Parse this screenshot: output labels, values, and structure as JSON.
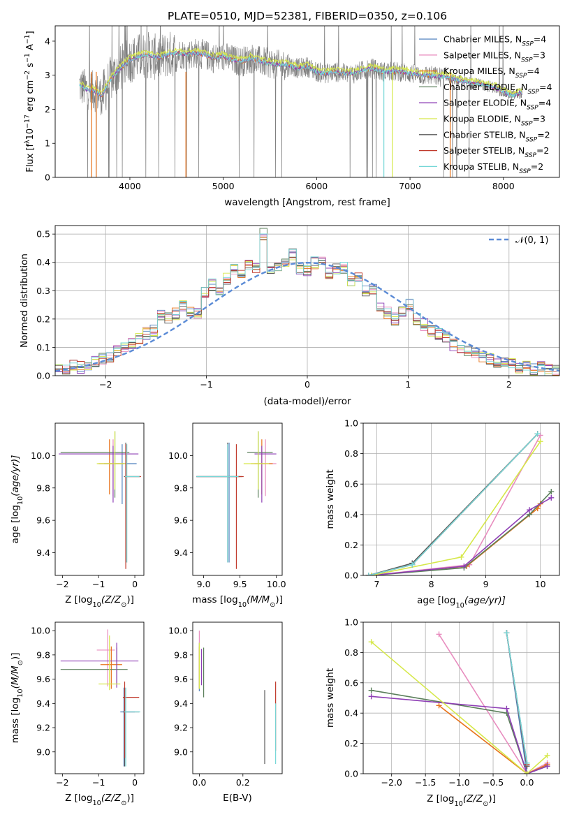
{
  "figure_title": "PLATE=0510, MJD=52381, FIBERID=0350, z=0.106",
  "colors": {
    "Chabrier MILES": "#4f81bd",
    "Salpeter MILES": "#e88dbf",
    "Kroupa MILES": "#e8731a",
    "Chabrier ELODIE": "#5b7f5b",
    "Salpeter ELODIE": "#8e3fb5",
    "Kroupa ELODIE": "#d6e84a",
    "Chabrier STELIB": "#5a5a5a",
    "Salpeter STELIB": "#c0392b",
    "Kroupa STELIB": "#76d7d7",
    "normal": "#5b8bd6"
  },
  "chart_data": [
    {
      "id": "spectrum",
      "type": "line",
      "title": "PLATE=0510, MJD=52381, FIBERID=0350, z=0.106",
      "xlabel": "wavelength [Angstrom, rest frame]",
      "ylabel_parts": [
        "Flux [f",
        "λ",
        "10",
        "−17",
        " erg cm",
        "−2",
        " s",
        "−1",
        " A",
        "−1",
        "]"
      ],
      "xlim": [
        3200,
        8600
      ],
      "ylim": [
        0,
        4.45
      ],
      "xticks": [
        4000,
        5000,
        6000,
        7000,
        8000
      ],
      "yticks": [
        0,
        1,
        2,
        3,
        4
      ],
      "legend_position": "right",
      "legend": [
        {
          "base": "Chabrier MILES, N",
          "sub": "SSP",
          "tail": "=4",
          "key": "Chabrier MILES"
        },
        {
          "base": "Salpeter MILES, N",
          "sub": "SSP",
          "tail": "=3",
          "key": "Salpeter MILES"
        },
        {
          "base": "Kroupa MILES, N",
          "sub": "SSP",
          "tail": "=4",
          "key": "Kroupa MILES"
        },
        {
          "base": "Chabrier ELODIE, N",
          "sub": "SSP",
          "tail": "=4",
          "key": "Chabrier ELODIE"
        },
        {
          "base": "Salpeter ELODIE, N",
          "sub": "SSP",
          "tail": "=4",
          "key": "Salpeter ELODIE"
        },
        {
          "base": "Kroupa ELODIE, N",
          "sub": "SSP",
          "tail": "=3",
          "key": "Kroupa ELODIE"
        },
        {
          "base": "Chabrier STELIB, N",
          "sub": "SSP",
          "tail": "=2",
          "key": "Chabrier STELIB"
        },
        {
          "base": "Salpeter STELIB, N",
          "sub": "SSP",
          "tail": "=2",
          "key": "Salpeter STELIB"
        },
        {
          "base": "Kroupa STELIB, N",
          "sub": "SSP",
          "tail": "=2",
          "key": "Kroupa STELIB"
        }
      ],
      "continuum": {
        "x": [
          3460,
          3520,
          3600,
          3700,
          3800,
          3900,
          4000,
          4100,
          4200,
          4300,
          4400,
          4500,
          4600,
          4700,
          4800,
          4900,
          5000,
          5100,
          5200,
          5300,
          5400,
          5500,
          5600,
          5700,
          5800,
          5900,
          6000,
          6100,
          6200,
          6300,
          6400,
          6500,
          6600,
          6700,
          6800,
          6900,
          7000,
          7100,
          7200,
          7300,
          7400,
          7500,
          7600,
          7700,
          7800,
          7900,
          8000,
          8100,
          8200
        ],
        "y": [
          2.7,
          2.6,
          2.55,
          2.4,
          2.9,
          3.2,
          3.45,
          3.55,
          3.6,
          3.5,
          3.6,
          3.65,
          3.6,
          3.65,
          3.6,
          3.5,
          3.55,
          3.45,
          3.4,
          3.5,
          3.4,
          3.35,
          3.3,
          3.3,
          3.2,
          3.25,
          3.1,
          3.05,
          3.1,
          3.05,
          3.05,
          3.15,
          3.2,
          3.1,
          3.1,
          3.1,
          3.05,
          3.0,
          3.0,
          2.95,
          2.95,
          2.85,
          2.8,
          2.75,
          2.7,
          2.65,
          2.5,
          2.4,
          2.5
        ]
      }
    },
    {
      "id": "residuals",
      "type": "histogram",
      "xlabel": "(data-model)/error",
      "ylabel": "Normed distribution",
      "xlim": [
        -2.5,
        2.5
      ],
      "ylim": [
        0,
        0.53
      ],
      "xticks": [
        -2,
        -1,
        0,
        1,
        2
      ],
      "yticks": [
        0,
        0.1,
        0.2,
        0.3,
        0.4,
        0.5
      ],
      "grid": true,
      "legend_label": "𝒩(0, 1)",
      "legend_position": "top-right",
      "bin_width": 0.1,
      "bin_start": -2.5,
      "base_heights": [
        0.03,
        0.02,
        0.04,
        0.03,
        0.04,
        0.05,
        0.06,
        0.07,
        0.09,
        0.1,
        0.11,
        0.13,
        0.15,
        0.16,
        0.21,
        0.2,
        0.22,
        0.25,
        0.23,
        0.22,
        0.29,
        0.32,
        0.3,
        0.34,
        0.38,
        0.36,
        0.39,
        0.38,
        0.5,
        0.37,
        0.38,
        0.4,
        0.43,
        0.38,
        0.37,
        0.4,
        0.41,
        0.36,
        0.38,
        0.38,
        0.33,
        0.35,
        0.3,
        0.31,
        0.25,
        0.22,
        0.2,
        0.23,
        0.25,
        0.2,
        0.18,
        0.16,
        0.15,
        0.14,
        0.11,
        0.1,
        0.09,
        0.08,
        0.07,
        0.06,
        0.05,
        0.04,
        0.04,
        0.03,
        0.03,
        0.02,
        0.03,
        0.02,
        0.02
      ]
    },
    {
      "id": "age_vs_Z",
      "type": "errorbar",
      "xlabel_parts": [
        "Z [log",
        "10",
        "(Z/Z",
        "⊙",
        ")]"
      ],
      "ylabel_parts": [
        "age  [log",
        "10",
        "(age/yr)]"
      ],
      "xlim": [
        -2.2,
        0.25
      ],
      "ylim": [
        9.26,
        10.2
      ],
      "xticks": [
        -2,
        -1,
        0
      ],
      "yticks": [
        9.4,
        9.6,
        9.8,
        10.0
      ],
      "points": [
        {
          "key": "Chabrier MILES",
          "x": -0.35,
          "y": 9.95,
          "xl": 0.5,
          "xh": 0.4,
          "yl": 0.25,
          "yh": 0.12
        },
        {
          "key": "Salpeter MILES",
          "x": -0.6,
          "y": 9.95,
          "xl": 0.4,
          "xh": 0.3,
          "yl": 0.2,
          "yh": 0.15
        },
        {
          "key": "Kroupa MILES",
          "x": -0.7,
          "y": 9.95,
          "xl": 0.3,
          "xh": 0.4,
          "yl": 0.19,
          "yh": 0.15
        },
        {
          "key": "Chabrier ELODIE",
          "x": -0.55,
          "y": 10.02,
          "xl": 1.5,
          "xh": 0.4,
          "yl": 0.28,
          "yh": 0.13
        },
        {
          "key": "Salpeter ELODIE",
          "x": -0.6,
          "y": 10.01,
          "xl": 1.5,
          "xh": 0.7,
          "yl": 0.3,
          "yh": 0.05
        },
        {
          "key": "Kroupa ELODIE",
          "x": -0.55,
          "y": 9.95,
          "xl": 0.5,
          "xh": 0.3,
          "yl": 0.16,
          "yh": 0.2
        },
        {
          "key": "Chabrier STELIB",
          "x": -0.25,
          "y": 9.87,
          "xl": 0.05,
          "xh": 0.4,
          "yl": 0.53,
          "yh": 0.21
        },
        {
          "key": "Salpeter STELIB",
          "x": -0.25,
          "y": 9.87,
          "xl": 0.03,
          "xh": 0.42,
          "yl": 0.57,
          "yh": 0.2
        },
        {
          "key": "Kroupa STELIB",
          "x": -0.22,
          "y": 9.87,
          "xl": 0.05,
          "xh": 0.35,
          "yl": 0.53,
          "yh": 0.2
        }
      ]
    },
    {
      "id": "age_vs_mass",
      "type": "errorbar",
      "xlabel_parts": [
        "mass [log",
        "10",
        "(M/M",
        "⊙",
        ")]"
      ],
      "ylabel_parts": [],
      "xlim": [
        8.85,
        10.08
      ],
      "ylim": [
        9.26,
        10.2
      ],
      "xticks": [
        9.0,
        9.5,
        10.0
      ],
      "yticks": [
        9.4,
        9.6,
        9.8,
        10.0
      ],
      "points": [
        {
          "key": "Chabrier MILES",
          "x": 9.35,
          "y": 9.87,
          "xl": 0.45,
          "xh": 0.15,
          "yl": 0.53,
          "yh": 0.21
        },
        {
          "key": "Salpeter MILES",
          "x": 9.85,
          "y": 9.95,
          "xl": 0.15,
          "xh": 0.15,
          "yl": 0.2,
          "yh": 0.15
        },
        {
          "key": "Kroupa MILES",
          "x": 9.8,
          "y": 9.95,
          "xl": 0.15,
          "xh": 0.15,
          "yl": 0.19,
          "yh": 0.15
        },
        {
          "key": "Chabrier ELODIE",
          "x": 9.75,
          "y": 10.02,
          "xl": 0.15,
          "xh": 0.2,
          "yl": 0.28,
          "yh": 0.13
        },
        {
          "key": "Salpeter ELODIE",
          "x": 9.8,
          "y": 10.01,
          "xl": 0.1,
          "xh": 0.2,
          "yl": 0.3,
          "yh": 0.05
        },
        {
          "key": "Kroupa ELODIE",
          "x": 9.75,
          "y": 9.95,
          "xl": 0.2,
          "xh": 0.15,
          "yl": 0.16,
          "yh": 0.2
        },
        {
          "key": "Chabrier STELIB",
          "x": 9.33,
          "y": 9.87,
          "xl": 0.43,
          "xh": 0.2,
          "yl": 0.53,
          "yh": 0.21
        },
        {
          "key": "Salpeter STELIB",
          "x": 9.45,
          "y": 9.87,
          "xl": 0.55,
          "xh": 0.1,
          "yl": 0.57,
          "yh": 0.2
        },
        {
          "key": "Kroupa STELIB",
          "x": 9.33,
          "y": 9.87,
          "xl": 0.43,
          "xh": 0.15,
          "yl": 0.53,
          "yh": 0.2
        }
      ]
    },
    {
      "id": "weight_vs_age",
      "type": "line",
      "xlabel_parts": [
        "age  [log",
        "10",
        "(age/yr)]"
      ],
      "ylabel": "mass weight",
      "xlim": [
        6.75,
        10.35
      ],
      "ylim": [
        0,
        1.0
      ],
      "xticks": [
        7,
        8,
        9,
        10
      ],
      "yticks": [
        0.0,
        0.2,
        0.4,
        0.6,
        0.8,
        1.0
      ],
      "grid": true,
      "series": [
        {
          "key": "Chabrier MILES",
          "x": [
            6.85,
            7.65,
            9.95
          ],
          "y": [
            0.0,
            0.07,
            0.93
          ]
        },
        {
          "key": "Salpeter MILES",
          "x": [
            6.9,
            8.7,
            10.0
          ],
          "y": [
            0.0,
            0.07,
            0.92
          ]
        },
        {
          "key": "Kroupa MILES",
          "x": [
            6.9,
            8.65,
            9.95,
            10.0
          ],
          "y": [
            0.0,
            0.06,
            0.44,
            0.47
          ]
        },
        {
          "key": "Chabrier ELODIE",
          "x": [
            6.9,
            8.6,
            9.8,
            10.2
          ],
          "y": [
            0.0,
            0.05,
            0.4,
            0.55
          ]
        },
        {
          "key": "Salpeter ELODIE",
          "x": [
            6.9,
            8.6,
            9.8,
            10.2
          ],
          "y": [
            0.0,
            0.06,
            0.43,
            0.51
          ]
        },
        {
          "key": "Kroupa ELODIE",
          "x": [
            6.9,
            8.55,
            10.0
          ],
          "y": [
            0.0,
            0.12,
            0.88
          ]
        },
        {
          "key": "Chabrier STELIB",
          "x": [
            6.85,
            7.65,
            9.95
          ],
          "y": [
            0.0,
            0.08,
            0.93
          ]
        },
        {
          "key": "Salpeter STELIB",
          "x": [
            6.85,
            7.65,
            9.95
          ],
          "y": [
            0.0,
            0.07,
            0.93
          ]
        },
        {
          "key": "Kroupa STELIB",
          "x": [
            6.85,
            7.65,
            9.95
          ],
          "y": [
            0.0,
            0.07,
            0.93
          ]
        }
      ]
    },
    {
      "id": "mass_vs_Z",
      "type": "errorbar",
      "xlabel_parts": [
        "Z [log",
        "10",
        "(Z/Z",
        "⊙",
        ")]"
      ],
      "ylabel_parts": [
        "mass [log",
        "10",
        "(M/M",
        "⊙",
        ")]"
      ],
      "xlim": [
        -2.2,
        0.25
      ],
      "ylim": [
        8.82,
        10.07
      ],
      "xticks": [
        -2,
        -1,
        0
      ],
      "yticks": [
        9.0,
        9.2,
        9.4,
        9.6,
        9.8,
        10.0
      ],
      "points": [
        {
          "key": "Chabrier MILES",
          "x": -0.3,
          "y": 9.33,
          "xl": 0.1,
          "xh": 0.3,
          "yl": 0.45,
          "yh": 0.2
        },
        {
          "key": "Salpeter MILES",
          "x": -0.75,
          "y": 9.84,
          "xl": 0.3,
          "xh": 0.2,
          "yl": 0.3,
          "yh": 0.17
        },
        {
          "key": "Kroupa MILES",
          "x": -0.65,
          "y": 9.72,
          "xl": 0.3,
          "xh": 0.3,
          "yl": 0.2,
          "yh": 0.15
        },
        {
          "key": "Chabrier ELODIE",
          "x": -0.5,
          "y": 9.68,
          "xl": 1.55,
          "xh": 0.3,
          "yl": 0.12,
          "yh": 0.18
        },
        {
          "key": "Salpeter ELODIE",
          "x": -0.5,
          "y": 9.75,
          "xl": 1.55,
          "xh": 0.6,
          "yl": 0.22,
          "yh": 0.15
        },
        {
          "key": "Kroupa ELODIE",
          "x": -0.7,
          "y": 9.56,
          "xl": 0.3,
          "xh": 0.3,
          "yl": 0.05,
          "yh": 0.4
        },
        {
          "key": "Chabrier STELIB",
          "x": -0.28,
          "y": 9.33,
          "xl": 0.05,
          "xh": 0.4,
          "yl": 0.45,
          "yh": 0.2
        },
        {
          "key": "Salpeter STELIB",
          "x": -0.28,
          "y": 9.45,
          "xl": 0.05,
          "xh": 0.4,
          "yl": 0.5,
          "yh": 0.13
        },
        {
          "key": "Kroupa STELIB",
          "x": -0.25,
          "y": 9.33,
          "xl": 0.05,
          "xh": 0.4,
          "yl": 0.45,
          "yh": 0.2
        }
      ]
    },
    {
      "id": "mass_vs_EBV",
      "type": "errorbar",
      "xlabel": "E(B-V)",
      "ylabel_parts": [],
      "xlim": [
        -0.03,
        0.38
      ],
      "ylim": [
        8.82,
        10.07
      ],
      "xticks": [
        0.0,
        0.2
      ],
      "yticks": [
        9.0,
        9.2,
        9.4,
        9.6,
        9.8,
        10.0
      ],
      "points": [
        {
          "key": "Chabrier MILES",
          "x": 0.0,
          "y": 9.6,
          "xl": 0,
          "xh": 0,
          "yl": 0.1,
          "yh": 0.3
        },
        {
          "key": "Salpeter MILES",
          "x": 0.0,
          "y": 9.84,
          "xl": 0,
          "xh": 0,
          "yl": 0.2,
          "yh": 0.16
        },
        {
          "key": "Kroupa MILES",
          "x": 0.0,
          "y": 9.72,
          "xl": 0,
          "xh": 0,
          "yl": 0.2,
          "yh": 0.15
        },
        {
          "key": "Chabrier ELODIE",
          "x": 0.02,
          "y": 9.68,
          "xl": 0,
          "xh": 0,
          "yl": 0.23,
          "yh": 0.18
        },
        {
          "key": "Salpeter ELODIE",
          "x": 0.01,
          "y": 9.75,
          "xl": 0,
          "xh": 0,
          "yl": 0.2,
          "yh": 0.1
        },
        {
          "key": "Kroupa ELODIE",
          "x": 0.0,
          "y": 9.7,
          "xl": 0,
          "xh": 0,
          "yl": 0.18,
          "yh": 0.2
        },
        {
          "key": "Chabrier STELIB",
          "x": 0.3,
          "y": 9.2,
          "xl": 0,
          "xh": 0,
          "yl": 0.3,
          "yh": 0.31
        },
        {
          "key": "Salpeter STELIB",
          "x": 0.35,
          "y": 9.3,
          "xl": 0,
          "xh": 0,
          "yl": 0.29,
          "yh": 0.28
        },
        {
          "key": "Kroupa STELIB",
          "x": 0.35,
          "y": 9.1,
          "xl": 0,
          "xh": 0,
          "yl": 0.2,
          "yh": 0.3
        }
      ]
    },
    {
      "id": "weight_vs_Z",
      "type": "line",
      "xlabel_parts": [
        "Z [log",
        "10",
        "(Z/Z",
        "⊙",
        ")]"
      ],
      "ylabel": "mass weight",
      "xlim": [
        -2.42,
        0.48
      ],
      "ylim": [
        0,
        1.0
      ],
      "xticks": [
        -2.0,
        -1.5,
        -1.0,
        -0.5,
        0.0
      ],
      "yticks": [
        0.0,
        0.2,
        0.4,
        0.6,
        0.8,
        1.0
      ],
      "grid": true,
      "series": [
        {
          "key": "Chabrier MILES",
          "x": [
            0.0,
            -0.3,
            0.0
          ],
          "y": [
            0.07,
            0.93,
            0.0
          ]
        },
        {
          "key": "Salpeter MILES",
          "x": [
            -1.3,
            0.0,
            0.3
          ],
          "y": [
            0.92,
            0.0,
            0.07
          ]
        },
        {
          "key": "Kroupa MILES",
          "x": [
            -1.3,
            0.0,
            0.3
          ],
          "y": [
            0.45,
            0.0,
            0.06
          ]
        },
        {
          "key": "Chabrier ELODIE",
          "x": [
            -2.3,
            -0.3,
            0.0,
            0.3
          ],
          "y": [
            0.55,
            0.4,
            0.0,
            0.05
          ]
        },
        {
          "key": "Salpeter ELODIE",
          "x": [
            -2.3,
            -0.3,
            0.0,
            0.3
          ],
          "y": [
            0.51,
            0.43,
            0.0,
            0.05
          ]
        },
        {
          "key": "Kroupa ELODIE",
          "x": [
            -2.3,
            0.0,
            0.3
          ],
          "y": [
            0.87,
            0.0,
            0.12
          ]
        },
        {
          "key": "Chabrier STELIB",
          "x": [
            -0.3,
            0.0
          ],
          "y": [
            0.93,
            0.05
          ]
        },
        {
          "key": "Salpeter STELIB",
          "x": [
            -0.3,
            0.0
          ],
          "y": [
            0.93,
            0.06
          ]
        },
        {
          "key": "Kroupa STELIB",
          "x": [
            -0.3,
            0.0
          ],
          "y": [
            0.93,
            0.07
          ]
        }
      ]
    }
  ]
}
